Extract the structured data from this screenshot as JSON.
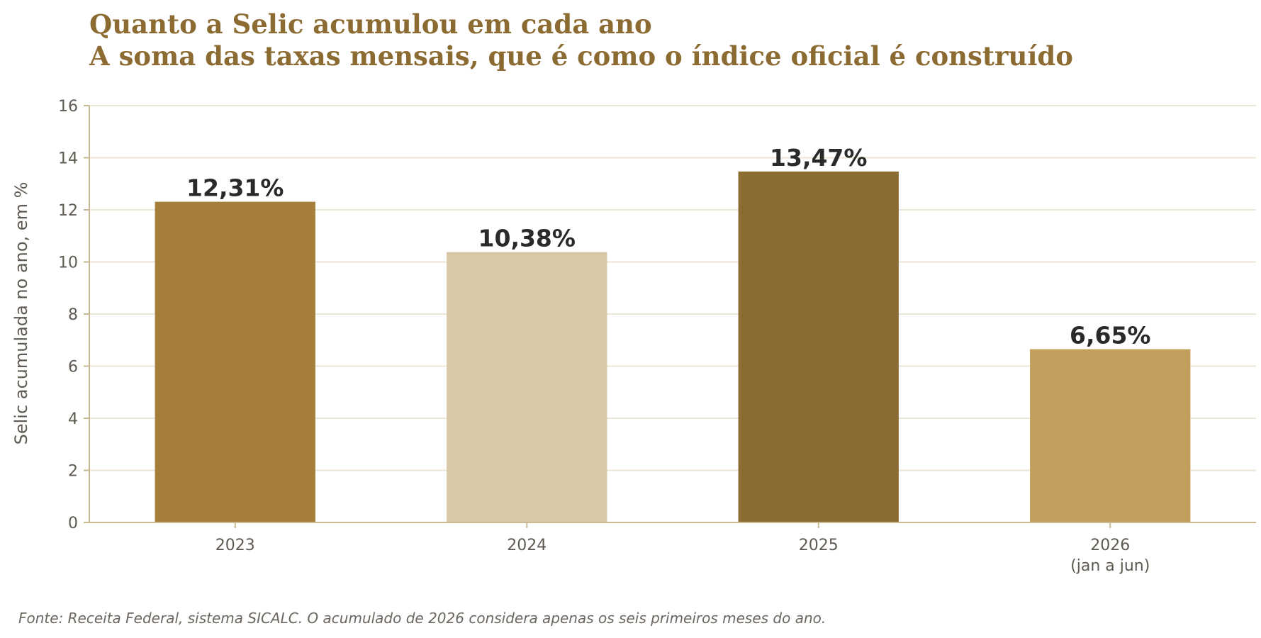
{
  "title_lines": [
    "Quanto a Selic acumulou em cada ano",
    "A soma das taxas mensais, que é como o índice oficial é construído"
  ],
  "source": "Fonte: Receita Federal, sistema SICALC. O acumulado de 2026 considera apenas os seis primeiros meses do ano.",
  "chart_data": {
    "type": "bar",
    "title": "Quanto a Selic acumulou em cada ano",
    "subtitle": "A soma das taxas mensais, que é como o índice oficial é construído",
    "ylabel": "Selic acumulada no ano, em %",
    "xlabel": "",
    "categories": [
      "2023",
      "2024",
      "2025",
      "2026\n(jan a jun)"
    ],
    "values": [
      12.31,
      10.38,
      13.47,
      6.65
    ],
    "data_labels": [
      "12,31%",
      "10,38%",
      "13,47%",
      "6,65%"
    ],
    "bar_colors": [
      "#a57f3a",
      "#d9c8a7",
      "#8b6c33",
      "#c39f5e"
    ],
    "ylim": [
      0,
      16
    ],
    "yticks": [
      0,
      2,
      4,
      6,
      8,
      10,
      12,
      14,
      16
    ],
    "grid": "horizontal",
    "legend": "none"
  },
  "colors": {
    "title": "#8b6b32",
    "gridline": "#ece6d6",
    "axis": "#c9b993",
    "text": "#5f5a52"
  }
}
